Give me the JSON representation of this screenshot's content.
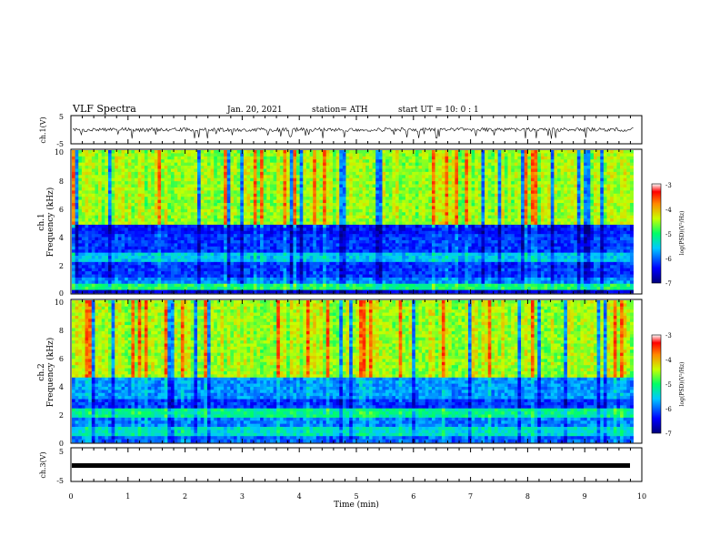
{
  "header": {
    "title": "VLF Spectra",
    "date": "Jan. 20, 2021",
    "station": "station= ATH",
    "start": "start UT =   10: 0  : 1"
  },
  "chart_data": [
    {
      "id": "ch1_wave",
      "type": "line",
      "ylabel": "ch.1(V)",
      "ylim": [
        -5,
        5
      ],
      "yticks": [
        "5",
        "-5"
      ],
      "xlim": [
        0,
        10
      ],
      "baseline": 0,
      "description_level": "noisy waveform around 0 V with occasional dips to about -3 V"
    },
    {
      "id": "ch1_spec",
      "type": "heatmap",
      "ylabel_top": "ch.1",
      "ylabel": "Frequency (kHz)",
      "ylim": [
        0,
        10
      ],
      "yticks": [
        "0",
        "2",
        "4",
        "6",
        "8",
        "10"
      ],
      "xlim": [
        0,
        9.85
      ],
      "colorbar": {
        "label": "log(PSD)(V²/Hz)",
        "range": [
          -7,
          -3
        ],
        "ticks": [
          "-3",
          "-4",
          "-5",
          "-6",
          "-7"
        ]
      }
    },
    {
      "id": "ch2_spec",
      "type": "heatmap",
      "ylabel_top": "ch.2",
      "ylabel": "Frequency (kHz)",
      "ylim": [
        0,
        10
      ],
      "yticks": [
        "0",
        "2",
        "4",
        "6",
        "8",
        "10"
      ],
      "xlim": [
        0,
        9.85
      ],
      "colorbar": {
        "label": "log(PSD)(V²/Hz)",
        "range": [
          -7,
          -3
        ],
        "ticks": [
          "-3",
          "-4",
          "-5",
          "-6",
          "-7"
        ]
      }
    },
    {
      "id": "ch3_wave",
      "type": "line",
      "ylabel": "ch.3(V)",
      "ylim": [
        -5,
        5
      ],
      "yticks": [
        "5",
        "-5"
      ],
      "xlim": [
        0,
        10
      ],
      "baseline": -1,
      "xlabel": "Time (min)",
      "xticks": [
        "0",
        "1",
        "2",
        "3",
        "4",
        "5",
        "6",
        "7",
        "8",
        "9",
        "10"
      ]
    }
  ]
}
